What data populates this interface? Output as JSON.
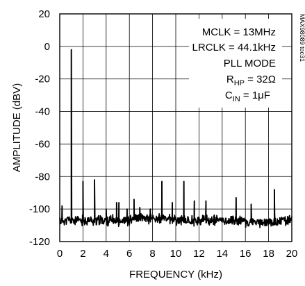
{
  "chart_data": {
    "type": "line",
    "title": "",
    "xlabel": "FREQUENCY (kHz)",
    "ylabel": "AMPLITUDE (dBV)",
    "xlim": [
      0,
      20
    ],
    "ylim": [
      -120,
      20
    ],
    "x_ticks": [
      "0",
      "2",
      "4",
      "6",
      "8",
      "10",
      "12",
      "14",
      "16",
      "18",
      "20"
    ],
    "y_ticks": [
      "20",
      "0",
      "-20",
      "-40",
      "-60",
      "-80",
      "-100",
      "-120"
    ],
    "grid": true,
    "legend": "none",
    "line_color": "#000000",
    "noise_floor_dBV": -107,
    "peaks": [
      {
        "x": 0.2,
        "y": -98
      },
      {
        "x": 1.0,
        "y": -2
      },
      {
        "x": 2.0,
        "y": -83
      },
      {
        "x": 3.0,
        "y": -82
      },
      {
        "x": 4.0,
        "y": -100
      },
      {
        "x": 4.9,
        "y": -96
      },
      {
        "x": 5.1,
        "y": -96
      },
      {
        "x": 5.8,
        "y": -100
      },
      {
        "x": 6.4,
        "y": -94
      },
      {
        "x": 6.9,
        "y": -99
      },
      {
        "x": 7.8,
        "y": -100
      },
      {
        "x": 8.8,
        "y": -83
      },
      {
        "x": 9.7,
        "y": -96
      },
      {
        "x": 10.7,
        "y": -83
      },
      {
        "x": 11.6,
        "y": -95
      },
      {
        "x": 12.6,
        "y": -95
      },
      {
        "x": 15.2,
        "y": -93
      },
      {
        "x": 16.5,
        "y": -97
      },
      {
        "x": 18.5,
        "y": -88
      },
      {
        "x": 19.0,
        "y": -106
      },
      {
        "x": 19.8,
        "y": -104
      }
    ],
    "annotations": {
      "mclk": "MCLK = 13MHz",
      "lrclk": "LRCLK = 44.1kHz",
      "mode": "PLL MODE",
      "rhp_main": "R",
      "rhp_sub": "HP",
      "rhp_value": " = 32Ω",
      "cin_main": "C",
      "cin_sub": "IN",
      "cin_value": " = 1μF"
    },
    "side_label": "MAX98089 toc31"
  }
}
